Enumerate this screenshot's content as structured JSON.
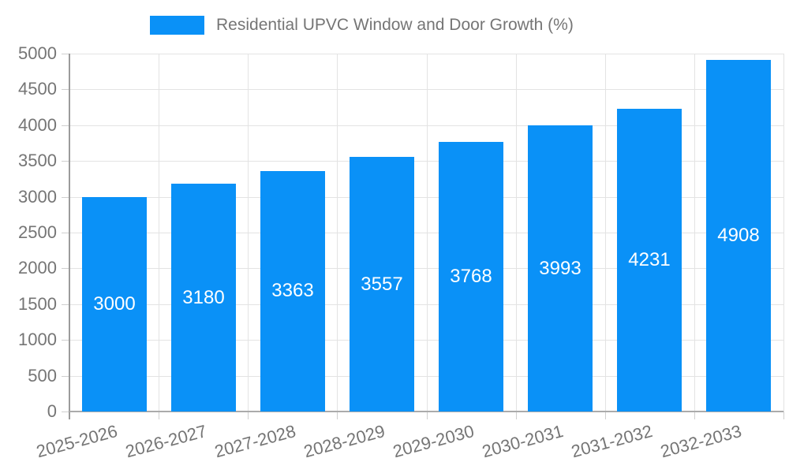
{
  "legend": {
    "label": "Residential UPVC Window and Door Growth (%)"
  },
  "colors": {
    "bar": "#0a91f7",
    "grid": "#e3e3e3",
    "tick_stub": "#cfcfcf",
    "y_axis": "#9b9b9b",
    "x_axis": "#ababab",
    "tick_label": "#757575",
    "value_label": "#ffffff",
    "background": "#ffffff"
  },
  "chart_data": {
    "type": "bar",
    "categories": [
      "2025-2026",
      "2026-2027",
      "2027-2028",
      "2028-2029",
      "2029-2030",
      "2030-2031",
      "2031-2032",
      "2032-2033"
    ],
    "values": [
      3000,
      3180,
      3363,
      3557,
      3768,
      3993,
      4231,
      4908
    ],
    "series_name": "Residential UPVC Window and Door Growth (%)",
    "title": "",
    "xlabel": "",
    "ylabel": "",
    "ylim": [
      0,
      5000
    ],
    "ytick_step": 500,
    "ytick_labels": [
      "0",
      "500",
      "1000",
      "1500",
      "2000",
      "2500",
      "3000",
      "3500",
      "4000",
      "4500",
      "5000"
    ],
    "grid": true,
    "legend_position": "top",
    "value_label_position": "inside-center",
    "x_label_rotation_deg": -15
  }
}
